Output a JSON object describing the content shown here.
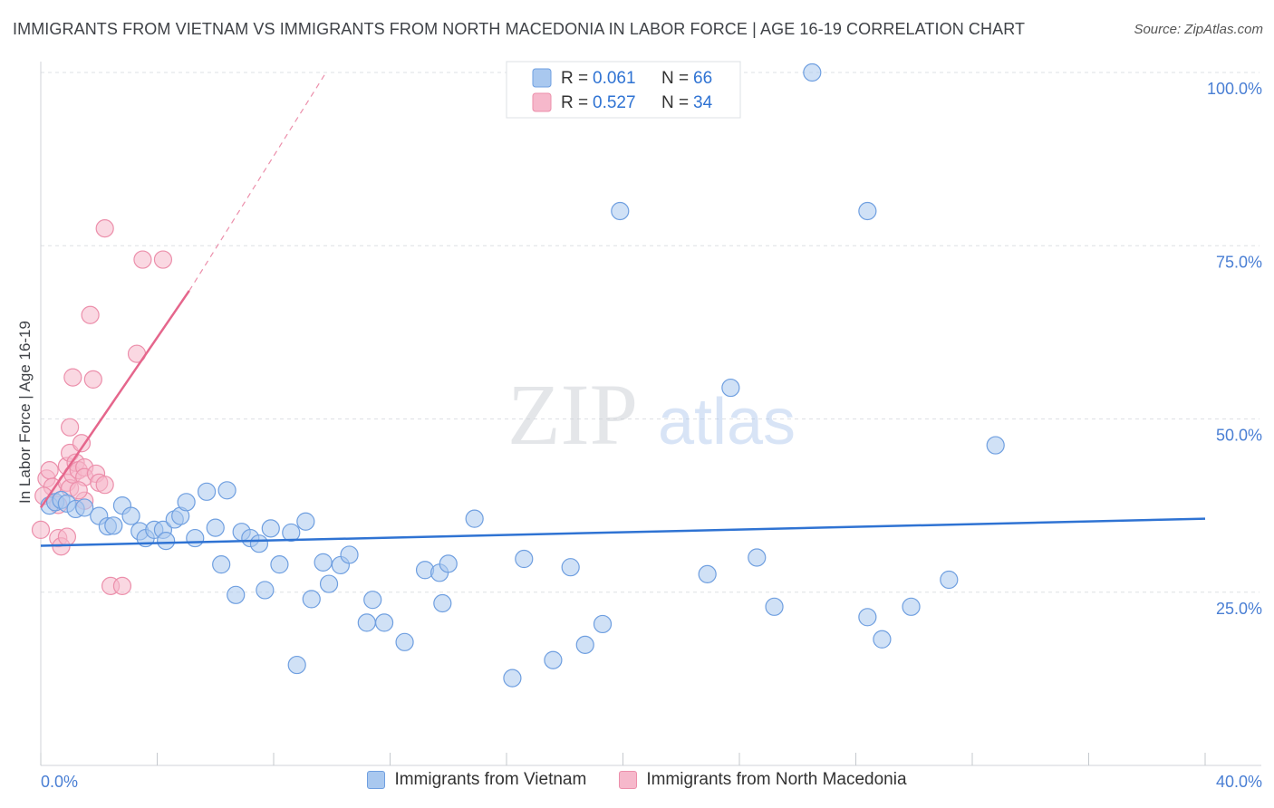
{
  "header": {
    "title": "IMMIGRANTS FROM VIETNAM VS IMMIGRANTS FROM NORTH MACEDONIA IN LABOR FORCE | AGE 16-19 CORRELATION CHART",
    "source": "Source: ZipAtlas.com"
  },
  "watermark": {
    "zip": "ZIP",
    "atlas": "atlas"
  },
  "colors": {
    "blue_fill": "#a9c8ef",
    "blue_stroke": "#6f9fe0",
    "blue_line": "#2f73d3",
    "pink_fill": "#f6b8cb",
    "pink_stroke": "#ec8fab",
    "pink_line": "#e5668c",
    "tick_label": "#4a7fd4",
    "grid": "#dde0e4"
  },
  "legend": {
    "entries": [
      {
        "r_label": "R =",
        "r_value": "0.061",
        "n_label": "N =",
        "n_value": "66"
      },
      {
        "r_label": "R =",
        "r_value": "0.527",
        "n_label": "N =",
        "n_value": "34"
      }
    ]
  },
  "chart_data": {
    "type": "scatter",
    "title": "IMMIGRANTS FROM VIETNAM VS IMMIGRANTS FROM NORTH MACEDONIA IN LABOR FORCE | AGE 16-19 CORRELATION CHART",
    "xlabel": "",
    "ylabel": "In Labor Force | Age 16-19",
    "xlim": [
      0,
      40
    ],
    "ylim": [
      0,
      101
    ],
    "x_tick_labels": [
      "0.0%",
      "40.0%"
    ],
    "y_ticks": [
      25,
      50,
      75,
      100
    ],
    "y_tick_labels": [
      "25.0%",
      "50.0%",
      "75.0%",
      "100.0%"
    ],
    "grid": true,
    "legend_position": "top-center",
    "series": [
      {
        "name": "Immigrants from Vietnam",
        "r": 0.061,
        "n": 66,
        "trend": {
          "x": [
            0,
            40
          ],
          "y": [
            31.7,
            35.6
          ]
        },
        "points": [
          [
            0.3,
            37.5
          ],
          [
            0.5,
            38.0
          ],
          [
            0.7,
            38.3
          ],
          [
            0.9,
            37.8
          ],
          [
            1.2,
            37.0
          ],
          [
            1.5,
            37.2
          ],
          [
            2.0,
            36.0
          ],
          [
            2.3,
            34.5
          ],
          [
            2.5,
            34.6
          ],
          [
            2.8,
            37.5
          ],
          [
            3.1,
            36.0
          ],
          [
            3.4,
            33.8
          ],
          [
            3.6,
            32.8
          ],
          [
            3.9,
            34.0
          ],
          [
            4.2,
            34.0
          ],
          [
            4.3,
            32.4
          ],
          [
            4.6,
            35.5
          ],
          [
            4.8,
            36.0
          ],
          [
            5.0,
            38.0
          ],
          [
            5.3,
            32.8
          ],
          [
            5.7,
            39.5
          ],
          [
            6.0,
            34.3
          ],
          [
            6.2,
            29.0
          ],
          [
            6.4,
            39.7
          ],
          [
            6.7,
            24.6
          ],
          [
            6.9,
            33.7
          ],
          [
            7.2,
            32.8
          ],
          [
            7.5,
            32.0
          ],
          [
            7.7,
            25.3
          ],
          [
            7.9,
            34.2
          ],
          [
            8.2,
            29.0
          ],
          [
            8.6,
            33.6
          ],
          [
            8.8,
            14.5
          ],
          [
            9.1,
            35.2
          ],
          [
            9.3,
            24.0
          ],
          [
            9.7,
            29.3
          ],
          [
            9.9,
            26.2
          ],
          [
            10.3,
            28.9
          ],
          [
            10.6,
            30.4
          ],
          [
            11.2,
            20.6
          ],
          [
            11.4,
            23.9
          ],
          [
            11.8,
            20.6
          ],
          [
            12.5,
            17.8
          ],
          [
            13.2,
            28.2
          ],
          [
            13.7,
            27.8
          ],
          [
            13.8,
            23.4
          ],
          [
            14.0,
            29.1
          ],
          [
            14.9,
            35.6
          ],
          [
            16.2,
            12.6
          ],
          [
            16.6,
            29.8
          ],
          [
            17.6,
            15.2
          ],
          [
            18.2,
            28.6
          ],
          [
            18.7,
            17.4
          ],
          [
            19.3,
            20.4
          ],
          [
            19.9,
            80.0
          ],
          [
            22.9,
            27.6
          ],
          [
            23.7,
            54.5
          ],
          [
            24.6,
            30.0
          ],
          [
            25.2,
            22.9
          ],
          [
            26.5,
            100.0
          ],
          [
            28.4,
            21.4
          ],
          [
            28.4,
            80.0
          ],
          [
            28.9,
            18.2
          ],
          [
            29.9,
            22.9
          ],
          [
            31.2,
            26.8
          ],
          [
            32.8,
            46.2
          ]
        ]
      },
      {
        "name": "Immigrants from North Macedonia",
        "r": 0.527,
        "n": 34,
        "trend": {
          "x": [
            0,
            5.1
          ],
          "y": [
            37.2,
            68.5
          ]
        },
        "trend_extension": {
          "x": [
            5.1,
            9.8
          ],
          "y": [
            68.5,
            100.0
          ]
        },
        "points": [
          [
            0.0,
            34.0
          ],
          [
            0.2,
            41.4
          ],
          [
            0.3,
            42.6
          ],
          [
            0.4,
            40.2
          ],
          [
            0.6,
            32.8
          ],
          [
            0.7,
            31.6
          ],
          [
            0.9,
            43.2
          ],
          [
            0.9,
            40.8
          ],
          [
            1.0,
            45.1
          ],
          [
            0.9,
            33.0
          ],
          [
            1.0,
            40.0
          ],
          [
            1.0,
            48.8
          ],
          [
            1.1,
            42.0
          ],
          [
            1.1,
            56.0
          ],
          [
            1.2,
            43.7
          ],
          [
            1.3,
            42.6
          ],
          [
            1.4,
            46.5
          ],
          [
            1.5,
            43.0
          ],
          [
            1.5,
            41.6
          ],
          [
            1.5,
            38.2
          ],
          [
            1.7,
            65.0
          ],
          [
            1.8,
            55.7
          ],
          [
            1.9,
            42.1
          ],
          [
            2.0,
            40.8
          ],
          [
            2.2,
            40.5
          ],
          [
            2.2,
            77.5
          ],
          [
            2.4,
            25.9
          ],
          [
            2.8,
            25.9
          ],
          [
            3.3,
            59.4
          ],
          [
            3.5,
            73.0
          ],
          [
            4.2,
            73.0
          ],
          [
            0.1,
            38.9
          ],
          [
            0.6,
            37.6
          ],
          [
            1.3,
            39.7
          ]
        ]
      }
    ]
  }
}
